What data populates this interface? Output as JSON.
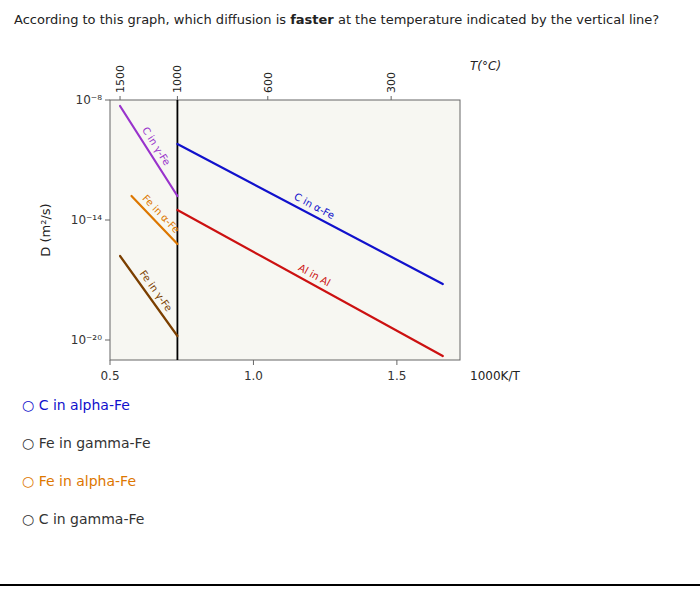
{
  "chart_data": {
    "type": "line",
    "title": "According to this graph, which diffusion is faster at the temperature indicated by the vertical line?",
    "title_emphasis": "faster",
    "xlabel": "1000K/T",
    "ylabel": "D (m²/s)",
    "log": "y",
    "grid": false,
    "xlim": [
      0.5,
      1.72
    ],
    "xticks": [
      0.5,
      {
        "value": 1.0,
        "label": "1.0"
      },
      1.5
    ],
    "ylim": [
      1e-21,
      1e-08
    ],
    "yticks": [
      {
        "value": 1e-08,
        "label": "10⁻⁸"
      },
      {
        "value": 1e-14,
        "label": "10⁻¹⁴"
      },
      {
        "value": 1e-20,
        "label": "10⁻²⁰"
      }
    ],
    "x2label": "T(°C)",
    "x2ticks": [
      {
        "value": 0.535,
        "label": "1500"
      },
      {
        "value": 0.735,
        "label": "1000"
      },
      {
        "value": 1.05,
        "label": "600"
      },
      {
        "value": 1.48,
        "label": "300"
      }
    ],
    "reference_lines": [
      {
        "x": 0.735
      }
    ],
    "series": [
      {
        "name": "C in γ-Fe",
        "color": "#9933CC",
        "x": [
          0.535,
          0.735
        ],
        "values": [
          5.011872336272722e-09,
          1.5848931924611137e-13
        ]
      },
      {
        "name": "C in α-Fe",
        "color": "#1111CC",
        "x": [
          0.735,
          1.66
        ],
        "values": [
          6.309573444801933e-11,
          6.309573444801933e-18
        ]
      },
      {
        "name": "Fe in α-Fe",
        "color": "#DD7700",
        "x": [
          0.575,
          0.735
        ],
        "values": [
          1.5848931924611137e-13,
          6.309573444801933e-16
        ]
      },
      {
        "name": "Fe in γ-Fe",
        "color": "#7B3F00",
        "x": [
          0.535,
          0.735
        ],
        "values": [
          1.5848931924611136e-16,
          1.5848931924611135e-20
        ]
      },
      {
        "name": "Al in Al",
        "color": "#CC1111",
        "x": [
          0.735,
          1.66
        ],
        "values": [
          3.1622776601683796e-14,
          1.5848931924611136e-21
        ]
      }
    ],
    "answer_options": [
      {
        "text": "○ C in alpha-Fe",
        "color": "#1111CC"
      },
      {
        "text": "○ Fe in gamma-Fe",
        "color": "#333333"
      },
      {
        "text": "○ Fe in alpha-Fe",
        "color": "#DD7700"
      },
      {
        "text": "○ C in gamma-Fe",
        "color": "#333333"
      }
    ]
  }
}
